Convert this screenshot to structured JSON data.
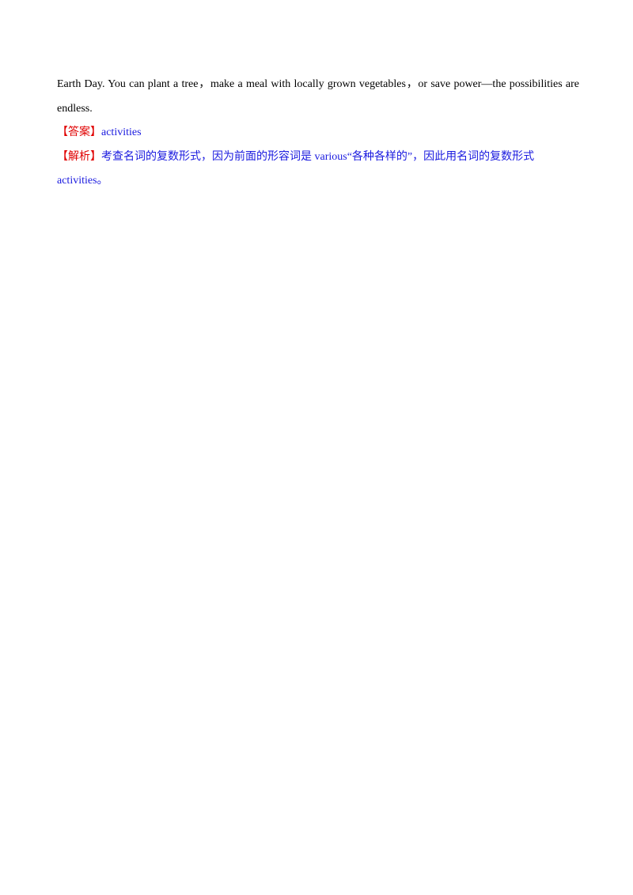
{
  "body": {
    "paragraph": "Earth Day. You can plant a tree，make a meal with locally grown vegetables，or save power—the possibilities are endless.",
    "answer": {
      "label": "【答案】",
      "text": "activities"
    },
    "analysis": {
      "label": "【解析】",
      "text": "考查名词的复数形式，因为前面的形容词是 various“各种各样的”，因此用名词的复数形式 activities。"
    }
  }
}
